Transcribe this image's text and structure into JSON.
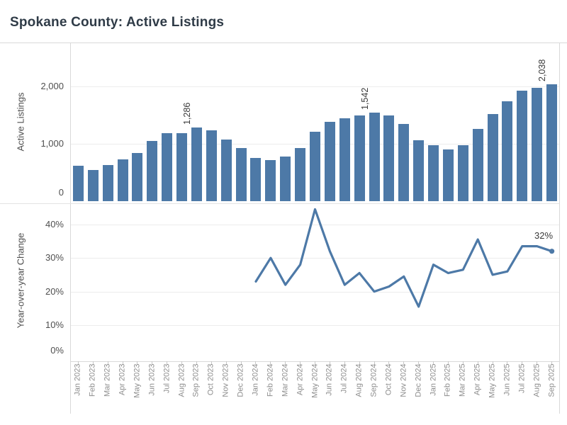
{
  "title": "Spokane County: Active Listings",
  "colors": {
    "accent_blue": "#4d79a7",
    "gridline": "#ececec",
    "pane_border": "#d9d9d9",
    "axis_text": "#4f4f4f",
    "month_text": "#8d8d8d",
    "annotation_text": "#3a3a3a",
    "title_text": "#2f3b47"
  },
  "chart_data": [
    {
      "type": "bar",
      "title": "Active Listings",
      "ylabel": "Active Listings",
      "categories": [
        "Jan 2023",
        "Feb 2023",
        "Mar 2023",
        "Apr 2023",
        "May 2023",
        "Jun 2023",
        "Jul 2023",
        "Aug 2023",
        "Sep 2023",
        "Oct 2023",
        "Nov 2023",
        "Dec 2023",
        "Jan 2024",
        "Feb 2024",
        "Mar 2024",
        "Apr 2024",
        "May 2024",
        "Jun 2024",
        "Jul 2024",
        "Aug 2024",
        "Sep 2024",
        "Oct 2024",
        "Nov 2024",
        "Dec 2024",
        "Jan 2025",
        "Feb 2025",
        "Mar 2025",
        "Apr 2025",
        "May 2025",
        "Jun 2025",
        "Jul 2025",
        "Aug 2025",
        "Sep 2025"
      ],
      "values": [
        615,
        545,
        635,
        730,
        845,
        1050,
        1190,
        1190,
        1286,
        1230,
        1080,
        920,
        755,
        715,
        775,
        925,
        1215,
        1385,
        1450,
        1495,
        1542,
        1495,
        1345,
        1065,
        970,
        900,
        980,
        1255,
        1520,
        1740,
        1920,
        1970,
        2038
      ],
      "yticks": [
        0,
        1000,
        2000
      ],
      "ytick_labels": [
        "0",
        "1,000",
        "2,000"
      ],
      "ylim": [
        0,
        2765
      ],
      "grid": true,
      "bar_color": "#4d79a7",
      "annotations": [
        {
          "category": "Sep 2023",
          "label": "1,286"
        },
        {
          "category": "Sep 2024",
          "label": "1,542"
        },
        {
          "category": "Sep 2025",
          "label": "2,038"
        }
      ]
    },
    {
      "type": "line",
      "ylabel": "Year-over-year Change",
      "start_category": "Jan 2024",
      "start_index": 12,
      "values": [
        23,
        30,
        22,
        28,
        44.5,
        32,
        22,
        25.5,
        20,
        21.5,
        24.5,
        15.5,
        28,
        25.5,
        26.5,
        35.5,
        25,
        26,
        33.5,
        33.5,
        32
      ],
      "yticks": [
        0,
        10,
        20,
        30,
        40
      ],
      "ytick_labels": [
        "0%",
        "10%",
        "20%",
        "30%",
        "40%"
      ],
      "ylim": [
        0,
        46
      ],
      "grid": true,
      "line_color": "#4d79a7",
      "end_label": "32%",
      "end_category": "Sep 2025"
    }
  ]
}
